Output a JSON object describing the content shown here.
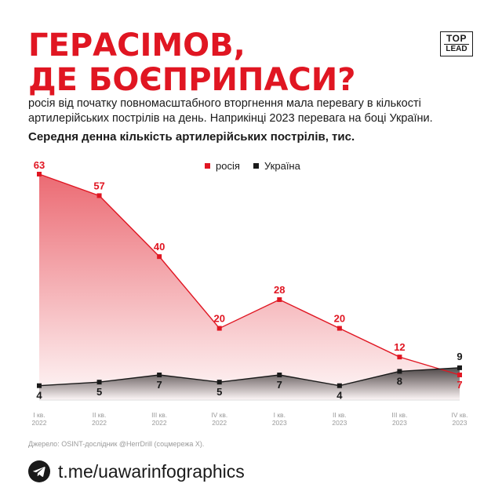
{
  "header": {
    "title_line1": "ГЕРАСІМОВ,",
    "title_line2": "ДЕ БОЄПРИПАСИ?",
    "logo_line1": "TOP",
    "logo_line2": "LEAD"
  },
  "subtitle": "росія від початку повномасштабного вторгнення мала перевагу в кількості артилерійських пострілів на день. Наприкінці 2023 перевага на боці України.",
  "chart_data": {
    "type": "area",
    "title": "Середня денна кількість артилерійських пострілів, тис.",
    "categories": [
      [
        "I кв.",
        "2022"
      ],
      [
        "II кв.",
        "2022"
      ],
      [
        "III кв.",
        "2022"
      ],
      [
        "IV кв.",
        "2022"
      ],
      [
        "I кв.",
        "2023"
      ],
      [
        "II кв.",
        "2023"
      ],
      [
        "III кв.",
        "2023"
      ],
      [
        "IV кв.",
        "2023"
      ]
    ],
    "series": [
      {
        "name": "росія",
        "color": "#e01622",
        "values": [
          63,
          57,
          40,
          20,
          28,
          20,
          12,
          7
        ]
      },
      {
        "name": "Україна",
        "color": "#1a1a1a",
        "values": [
          4,
          5,
          7,
          5,
          7,
          4,
          8,
          9
        ]
      }
    ],
    "ylim": [
      0,
      63
    ],
    "legend_position": "top-center",
    "grid": false
  },
  "source": "Джерело: OSINT-дослідник @HerrDrill (соцмережа X).",
  "footer": {
    "icon": "telegram-icon",
    "link": "t.me/uawarinfographics"
  }
}
